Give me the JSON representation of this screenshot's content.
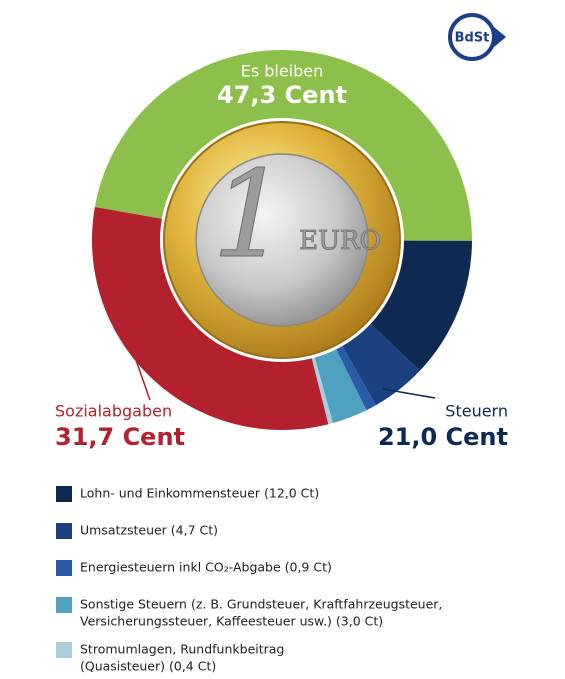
{
  "logo": "BdSt",
  "coin": {
    "numeral": "1",
    "word": "EURO"
  },
  "chart_data": {
    "type": "pie",
    "start_angle": 280,
    "slices": [
      {
        "name": "Es bleiben",
        "value": 47.3,
        "value_label": "47,3 Cent",
        "color": "#8dc04a"
      },
      {
        "legend": "Lohn- und Einkommensteuer (12,0 Ct)",
        "value": 12.0,
        "color": "#0e2a52"
      },
      {
        "legend": "Umsatzsteuer (4,7 Ct)",
        "value": 4.7,
        "color": "#1b4180"
      },
      {
        "legend": "Energiesteuern inkl CO₂-Abgabe (0,9 Ct)",
        "value": 0.9,
        "color": "#2a5ba8"
      },
      {
        "legend": [
          "Sonstige Steuern (z. B. Grundsteuer, Kraftfahrzeugsteuer,",
          "Versicherungssteuer, Kaffeesteuer usw.) (3,0 Ct)"
        ],
        "value": 3.0,
        "color": "#4ea2c0"
      },
      {
        "legend": [
          "Stromumlagen, Rundfunkbeitrag",
          "(Quasisteuer) (0,4 Ct)"
        ],
        "value": 0.4,
        "color": "#a9cfdc"
      },
      {
        "name": "Sozialabgaben",
        "value": 31.7,
        "value_label": "31,7 Cent",
        "color": "#b3212e"
      }
    ],
    "groups": [
      {
        "name": "Steuern",
        "value": 21.0,
        "value_label": "21,0 Cent",
        "color": "#0e2a52"
      }
    ]
  }
}
